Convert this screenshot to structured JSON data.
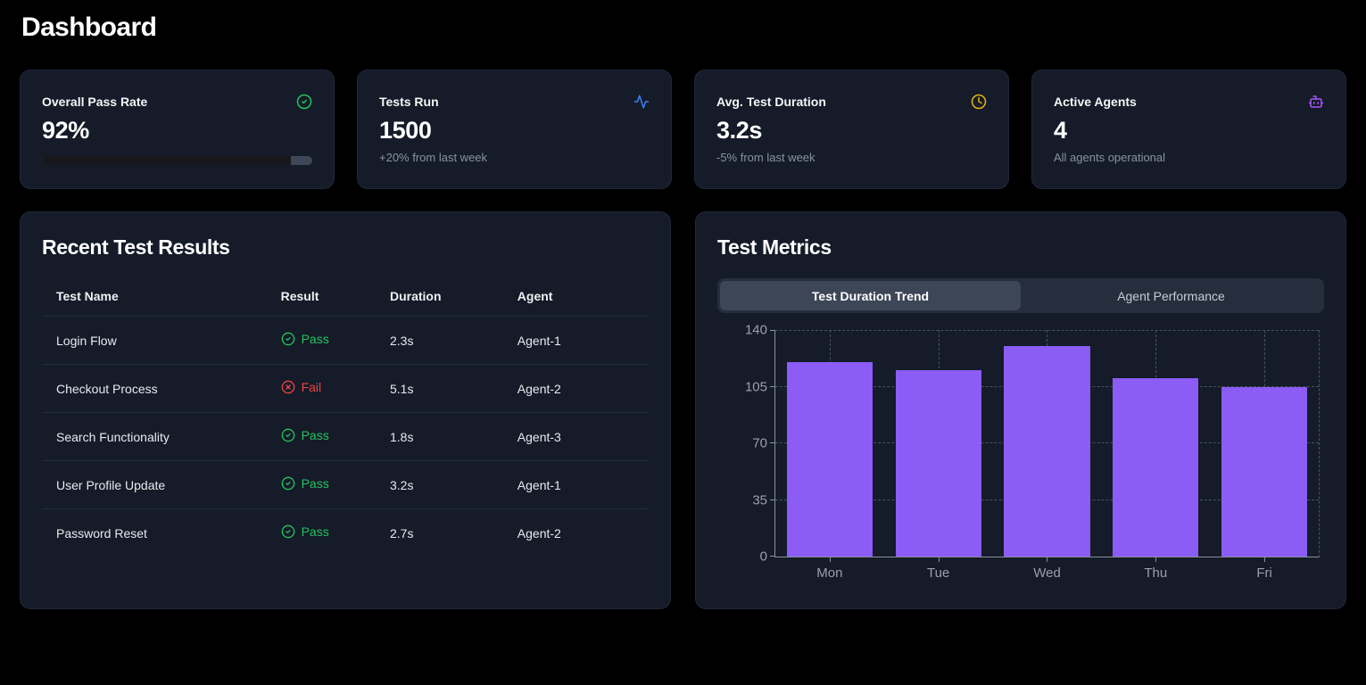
{
  "page": {
    "title": "Dashboard"
  },
  "stats": [
    {
      "label": "Overall Pass Rate",
      "value": "92%",
      "icon": "check-circle-icon",
      "icon_color": "#22c55e",
      "progress": 92,
      "progress_fill": "#18181c",
      "progress_track": "#3e4757"
    },
    {
      "label": "Tests Run",
      "value": "1500",
      "sub": "+20% from last week",
      "icon": "activity-icon",
      "icon_color": "#3b82f6"
    },
    {
      "label": "Avg. Test Duration",
      "value": "3.2s",
      "sub": "-5% from last week",
      "icon": "clock-icon",
      "icon_color": "#eab308"
    },
    {
      "label": "Active Agents",
      "value": "4",
      "sub": "All agents operational",
      "icon": "bot-icon",
      "icon_color": "#a855f7"
    }
  ],
  "results": {
    "title": "Recent Test Results",
    "columns": [
      "Test Name",
      "Result",
      "Duration",
      "Agent"
    ],
    "pass_color": "#22c55e",
    "fail_color": "#ef4444",
    "rows": [
      {
        "name": "Login Flow",
        "result": "Pass",
        "duration": "2.3s",
        "agent": "Agent-1"
      },
      {
        "name": "Checkout Process",
        "result": "Fail",
        "duration": "5.1s",
        "agent": "Agent-2"
      },
      {
        "name": "Search Functionality",
        "result": "Pass",
        "duration": "1.8s",
        "agent": "Agent-3"
      },
      {
        "name": "User Profile Update",
        "result": "Pass",
        "duration": "3.2s",
        "agent": "Agent-1"
      },
      {
        "name": "Password Reset",
        "result": "Pass",
        "duration": "2.7s",
        "agent": "Agent-2"
      }
    ]
  },
  "metrics": {
    "title": "Test Metrics",
    "tabs": [
      {
        "label": "Test Duration Trend",
        "active": true
      },
      {
        "label": "Agent Performance",
        "active": false
      }
    ],
    "chart_data": {
      "type": "bar",
      "categories": [
        "Mon",
        "Tue",
        "Wed",
        "Thu",
        "Fri"
      ],
      "values": [
        120,
        115,
        130,
        110,
        105
      ],
      "yticks": [
        0,
        35,
        70,
        105,
        140
      ],
      "ylim": [
        0,
        140
      ],
      "bar_color": "#8b5cf6",
      "grid": "dashed",
      "title": "",
      "xlabel": "",
      "ylabel": ""
    }
  }
}
